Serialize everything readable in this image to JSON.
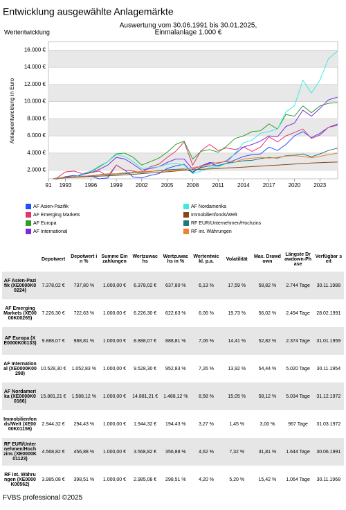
{
  "header": {
    "title": "Entwicklung ausgewählte Anlagemärkte",
    "left_label": "Wertentwicklung",
    "subtitle": [
      "Auswertung vom 30.06.1991 bis 30.01.2025,",
      "Einmalanlage 1.000 €"
    ]
  },
  "chart_data": {
    "type": "line",
    "y_label": "Anlageentwicklung in Euro",
    "x": [
      1991.5,
      1992,
      1993,
      1994,
      1995,
      1996,
      1997,
      1998,
      1999,
      2000,
      2001,
      2002,
      2003,
      2004,
      2005,
      2006,
      2007,
      2008,
      2009,
      2010,
      2011,
      2012,
      2013,
      2014,
      2015,
      2016,
      2017,
      2018,
      2019,
      2020,
      2021,
      2022,
      2023,
      2024,
      2025.08
    ],
    "xlim": [
      1991,
      2025.1
    ],
    "xticks": [
      {
        "value": 1991,
        "label": "91"
      },
      1993,
      1996,
      1999,
      2002,
      2005,
      2008,
      2011,
      2014,
      2017,
      2020,
      2023
    ],
    "ylim": [
      1000,
      17000
    ],
    "yticks": [
      {
        "value": 2000,
        "label": "2.000 €"
      },
      {
        "value": 4000,
        "label": "4.000 €"
      },
      {
        "value": 6000,
        "label": "6.000 €"
      },
      {
        "value": 8000,
        "label": "8.000 €"
      },
      {
        "value": 10000,
        "label": "10.000 €"
      },
      {
        "value": 12000,
        "label": "12.000 €"
      },
      {
        "value": 14000,
        "label": "14.000 €"
      },
      {
        "value": 16000,
        "label": "16.000 €"
      }
    ],
    "grid": true,
    "series": [
      {
        "name": "AF Asien-Pazifik",
        "color": "#1f4fff",
        "values": [
          1000,
          950,
          1250,
          1400,
          1300,
          1300,
          1000,
          1100,
          2600,
          2000,
          1200,
          1100,
          1400,
          1600,
          2200,
          2500,
          2700,
          1700,
          2400,
          2800,
          2500,
          2800,
          3200,
          3600,
          3800,
          3900,
          4700,
          4300,
          5000,
          6000,
          6500,
          5800,
          6300,
          7000,
          7378.02
        ]
      },
      {
        "name": "AF Emerging Markets",
        "color": "#e8336a",
        "values": [
          1000,
          1100,
          1800,
          1900,
          1600,
          1700,
          1900,
          1300,
          2600,
          2000,
          1900,
          1700,
          2400,
          2700,
          3500,
          4200,
          5300,
          2600,
          4300,
          5000,
          4300,
          4600,
          4400,
          4700,
          4200,
          4700,
          5900,
          5300,
          6000,
          6400,
          6800,
          5700,
          6100,
          7000,
          7226.3
        ]
      },
      {
        "name": "AF Europa",
        "color": "#2ca02c",
        "values": [
          1000,
          1000,
          1200,
          1250,
          1500,
          1800,
          2400,
          3000,
          3900,
          4000,
          3500,
          2600,
          3000,
          3400,
          4100,
          5000,
          5400,
          3300,
          4200,
          4400,
          4100,
          4800,
          5700,
          6000,
          6500,
          6600,
          7400,
          6800,
          8500,
          8300,
          9500,
          8700,
          9500,
          9800,
          9888.07
        ]
      },
      {
        "name": "AF International",
        "color": "#7b2be0",
        "values": [
          1000,
          1000,
          1200,
          1250,
          1500,
          1700,
          2100,
          2600,
          3500,
          3300,
          2700,
          2000,
          2200,
          2400,
          2900,
          3300,
          3300,
          2100,
          2500,
          2900,
          2800,
          3100,
          3900,
          4700,
          5000,
          5400,
          6000,
          5900,
          7100,
          7500,
          9000,
          8300,
          9200,
          10200,
          10528.3
        ]
      },
      {
        "name": "AF Nordamerika",
        "color": "#40e8e0",
        "values": [
          1000,
          1000,
          1150,
          1200,
          1600,
          1900,
          2500,
          3000,
          3800,
          3600,
          3000,
          2200,
          2300,
          2400,
          2700,
          2800,
          2600,
          1600,
          1900,
          2300,
          2400,
          2800,
          4000,
          5200,
          5500,
          6300,
          6500,
          6800,
          8800,
          9500,
          12500,
          11000,
          12500,
          15000,
          15881.21
        ]
      },
      {
        "name": "Immobilienfonds/Welt",
        "color": "#8b4513",
        "values": [
          1000,
          1050,
          1100,
          1150,
          1200,
          1250,
          1300,
          1350,
          1400,
          1450,
          1520,
          1600,
          1680,
          1750,
          1820,
          1900,
          1980,
          2050,
          2100,
          2150,
          2200,
          2260,
          2300,
          2360,
          2420,
          2480,
          2540,
          2600,
          2660,
          2720,
          2780,
          2840,
          2880,
          2920,
          2944.32
        ]
      },
      {
        "name": "RF EUR/Unternehmen/Hochzins",
        "color": "#1f7a7a",
        "values": [
          1000,
          1050,
          1150,
          1200,
          1270,
          1350,
          1420,
          1480,
          1550,
          1600,
          1680,
          1750,
          1850,
          1950,
          2050,
          2100,
          2150,
          1800,
          2300,
          2500,
          2550,
          2800,
          2950,
          3100,
          3150,
          3350,
          3500,
          3400,
          3700,
          3750,
          3900,
          3550,
          3900,
          4300,
          4568.82
        ]
      },
      {
        "name": "RF int. Währungen",
        "color": "#f08030",
        "values": [
          1000,
          1080,
          1200,
          1180,
          1300,
          1380,
          1480,
          1600,
          1580,
          1720,
          1800,
          1850,
          1870,
          1900,
          1920,
          2000,
          2100,
          2300,
          2450,
          2700,
          2900,
          3000,
          2950,
          3300,
          3400,
          3500,
          3400,
          3500,
          3650,
          3700,
          3600,
          3450,
          3600,
          3800,
          3985.08
        ]
      }
    ]
  },
  "table": {
    "columns": [
      "Depotwert",
      "Depotwert in %",
      "Summe Einzahlungen",
      "Wertzuwachs",
      "Wertzuwachs in %",
      "Wertentwickl. p.a.",
      "Volatilität",
      "Max. Drawdown",
      "Längste Drawdown-Phase",
      "Verfügbar seit"
    ],
    "rows": [
      {
        "label": "AF Asien-Pazifik (XE0000K00224)",
        "cells": [
          "7.378,02 €",
          "737,80 %",
          "1.000,00 €",
          "6.378,02 €",
          "637,80 %",
          "6,13 %",
          "17,59 %",
          "58,82 %",
          "2.744 Tage",
          "30.11.1988"
        ]
      },
      {
        "label": "AF Emerging Markets (XE0000K00265)",
        "cells": [
          "7.226,30 €",
          "722,63 %",
          "1.000,00 €",
          "6.226,30 €",
          "622,63 %",
          "6,06 %",
          "19,73 %",
          "56,02 %",
          "2.494 Tage",
          "28.02.1991"
        ]
      },
      {
        "label": "AF Europa (XE0000K00133)",
        "cells": [
          "9.888,07 €",
          "988,81 %",
          "1.000,00 €",
          "8.888,07 €",
          "888,81 %",
          "7,06 %",
          "14,41 %",
          "52,82 %",
          "2.374 Tage",
          "31.01.1959"
        ]
      },
      {
        "label": "AF International (XE0000K00299)",
        "cells": [
          "10.528,30 €",
          "1.052,83 %",
          "1.000,00 €",
          "9.528,30 €",
          "952,83 %",
          "7,26 %",
          "13,92 %",
          "54,44 %",
          "5.020 Tage",
          "30.11.1954"
        ]
      },
      {
        "label": "AF Nordamerika (XE0000K00166)",
        "cells": [
          "15.881,21 €",
          "1.588,12 %",
          "1.000,00 €",
          "14.881,21 €",
          "1.488,12 %",
          "8,58 %",
          "15,05 %",
          "58,12 %",
          "5.034 Tage",
          "31.12.1972"
        ]
      },
      {
        "label": "Immobilienfonds/Welt (XE0000K01156)",
        "cells": [
          "2.944,32 €",
          "294,43 %",
          "1.000,00 €",
          "1.944,32 €",
          "194,43 %",
          "3,27 %",
          "1,45 %",
          "3,00 %",
          "967 Tage",
          "31.03.1972"
        ]
      },
      {
        "label": "RF EUR/Unternehmen/Hochzins (XE0000K01123)",
        "cells": [
          "4.568,82 €",
          "456,88 %",
          "1.000,00 €",
          "3.568,82 €",
          "356,88 %",
          "4,62 %",
          "7,32 %",
          "31,81 %",
          "1.644 Tage",
          "30.06.1991"
        ]
      },
      {
        "label": "RF int. Währungen (XE0000K00562)",
        "cells": [
          "3.985,08 €",
          "398,51 %",
          "1.000,00 €",
          "2.985,08 €",
          "298,51 %",
          "4,20 %",
          "5,20 %",
          "15,42 %",
          "1.064 Tage",
          "30.11.1968"
        ]
      }
    ]
  },
  "footer": "FVBS professional ©2025"
}
